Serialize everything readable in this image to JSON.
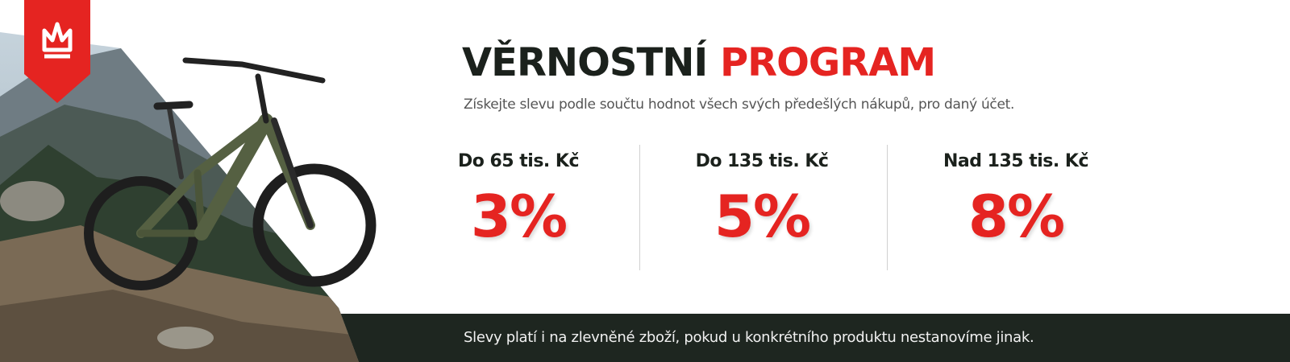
{
  "title": {
    "part1": "VĚRNOSTNÍ",
    "part2": "PROGRAM"
  },
  "subtitle": "Získejte slevu podle součtu hodnot všech svých předešlých nákupů, pro daný účet.",
  "tiers": [
    {
      "label": "Do 65 tis. Kč",
      "discount": "3%"
    },
    {
      "label": "Do 135 tis. Kč",
      "discount": "5%"
    },
    {
      "label": "Nad 135 tis. Kč",
      "discount": "8%"
    }
  ],
  "footer": "Slevy platí i na zlevněné zboží, pokud u konkrétního produktu nestanovíme jinak."
}
